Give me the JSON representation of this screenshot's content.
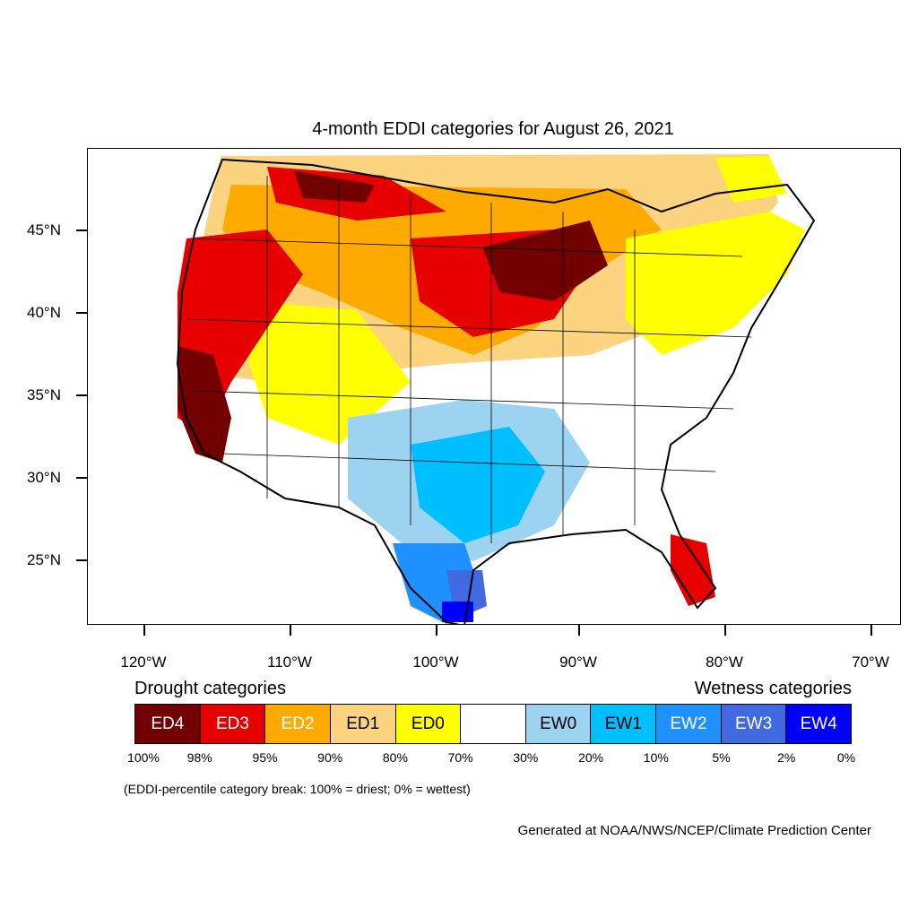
{
  "title": "4-month EDDI categories for August 26, 2021",
  "map": {
    "lat_labels": [
      "45°N",
      "40°N",
      "35°N",
      "30°N",
      "25°N"
    ],
    "lon_labels": [
      "120°W",
      "110°W",
      "100°W",
      "90°W",
      "80°W",
      "70°W"
    ]
  },
  "legend": {
    "drought_heading": "Drought categories",
    "wetness_heading": "Wetness categories",
    "categories": [
      {
        "label": "ED4",
        "color": "#730000",
        "text_color": "#ffffff"
      },
      {
        "label": "ED3",
        "color": "#e60000",
        "text_color": "#ffffff"
      },
      {
        "label": "ED2",
        "color": "#ffaa00",
        "text_color": "#ffffff"
      },
      {
        "label": "ED1",
        "color": "#fcd37f",
        "text_color": "#000000"
      },
      {
        "label": "ED0",
        "color": "#ffff00",
        "text_color": "#000000"
      },
      {
        "label": "",
        "color": "#ffffff",
        "text_color": "#000000"
      },
      {
        "label": "EW0",
        "color": "#9bd3f0",
        "text_color": "#000000"
      },
      {
        "label": "EW1",
        "color": "#00bfff",
        "text_color": "#000000"
      },
      {
        "label": "EW2",
        "color": "#1e90ff",
        "text_color": "#ffffff"
      },
      {
        "label": "EW3",
        "color": "#4169e1",
        "text_color": "#ffffff"
      },
      {
        "label": "EW4",
        "color": "#0000ff",
        "text_color": "#ffffff"
      }
    ],
    "breaks": [
      "100%",
      "98%",
      "95%",
      "90%",
      "80%",
      "70%",
      "30%",
      "20%",
      "10%",
      "5%",
      "2%",
      "0%"
    ],
    "note": "(EDDI-percentile category break: 100% = driest; 0% = wettest)"
  },
  "credit": "Generated at NOAA/NWS/NCEP/Climate Prediction Center"
}
